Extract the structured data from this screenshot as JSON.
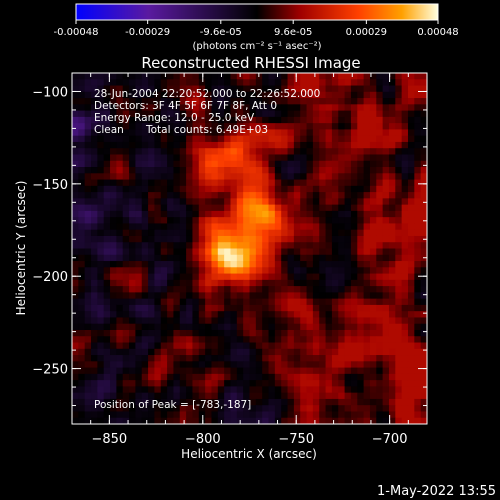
{
  "chart_data": {
    "type": "heatmap",
    "title": "Reconstructed RHESSI Image",
    "xlabel": "Heliocentric X (arcsec)",
    "ylabel": "Heliocentric Y (arcsec)",
    "xlim": [
      -870,
      -680
    ],
    "ylim": [
      -280,
      -90
    ],
    "xticks": [
      -850,
      -800,
      -750,
      -700
    ],
    "yticks": [
      -100,
      -150,
      -200,
      -250
    ],
    "colorbar": {
      "range": [
        -0.00048,
        0.00048
      ],
      "ticks": [
        -0.00048,
        -0.00029,
        -9.6e-05,
        9.6e-05,
        0.00029,
        0.00048
      ],
      "tick_labels": [
        "-0.00048",
        "-0.00029",
        "-9.6e-05",
        "9.6e-05",
        "0.00029",
        "0.00048"
      ],
      "unit_label": "(photons cm⁻² s⁻¹ asec⁻²)",
      "colors": [
        "#0000ff",
        "#5a1aa0",
        "#000000",
        "#a00000",
        "#ff4000",
        "#ffa000",
        "#ffffe0"
      ]
    },
    "annotations": {
      "time_range": "28-Jun-2004 22:20:52.000 to 22:26:52.000",
      "detectors": "Detectors: 3F 4F 5F 6F 7F 8F, Att 0",
      "energy_range": "Energy Range: 12.0 - 25.0 keV",
      "clean": "Clean",
      "total_counts": "Total counts: 6.49E+03",
      "peak": "Position of Peak = [-783,-187]"
    },
    "sources": [
      {
        "x": -783,
        "y": -187,
        "peak": 0.00048,
        "sigma": 11
      },
      {
        "x": -770,
        "y": -165,
        "peak": 0.00034,
        "sigma": 10
      },
      {
        "x": -795,
        "y": -140,
        "peak": 0.00026,
        "sigma": 9
      },
      {
        "x": -775,
        "y": -132,
        "peak": 0.00016,
        "sigma": 10
      }
    ],
    "background": {
      "min": -0.00022,
      "max": 0.00014
    }
  },
  "datestamp": "1-May-2022 13:55"
}
